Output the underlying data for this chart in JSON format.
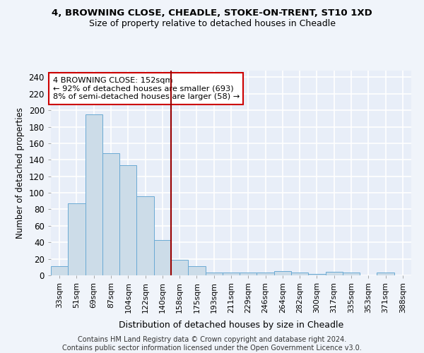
{
  "title1": "4, BROWNING CLOSE, CHEADLE, STOKE-ON-TRENT, ST10 1XD",
  "title2": "Size of property relative to detached houses in Cheadle",
  "xlabel": "Distribution of detached houses by size in Cheadle",
  "ylabel": "Number of detached properties",
  "bin_labels": [
    "33sqm",
    "51sqm",
    "69sqm",
    "87sqm",
    "104sqm",
    "122sqm",
    "140sqm",
    "158sqm",
    "175sqm",
    "193sqm",
    "211sqm",
    "229sqm",
    "246sqm",
    "264sqm",
    "282sqm",
    "300sqm",
    "317sqm",
    "335sqm",
    "353sqm",
    "371sqm",
    "388sqm"
  ],
  "bar_heights": [
    11,
    87,
    195,
    148,
    133,
    96,
    43,
    19,
    11,
    3,
    3,
    3,
    3,
    5,
    3,
    2,
    4,
    3,
    0,
    3,
    0
  ],
  "bar_color": "#ccdce8",
  "bar_edge_color": "#6aaad4",
  "vline_color": "#990000",
  "vline_x_index": 7,
  "ylim": [
    0,
    248
  ],
  "yticks": [
    0,
    20,
    40,
    60,
    80,
    100,
    120,
    140,
    160,
    180,
    200,
    220,
    240
  ],
  "annotation_line1": "4 BROWNING CLOSE: 152sqm",
  "annotation_line2": "← 92% of detached houses are smaller (693)",
  "annotation_line3": "8% of semi-detached houses are larger (58) →",
  "annotation_box_color": "#ffffff",
  "annotation_box_edge": "#cc0000",
  "footer_text": "Contains HM Land Registry data © Crown copyright and database right 2024.\nContains public sector information licensed under the Open Government Licence v3.0.",
  "background_color": "#f0f4fa",
  "plot_bg_color": "#e8eef8",
  "grid_color": "#ffffff",
  "fig_width": 6.0,
  "fig_height": 5.0,
  "dpi": 100
}
